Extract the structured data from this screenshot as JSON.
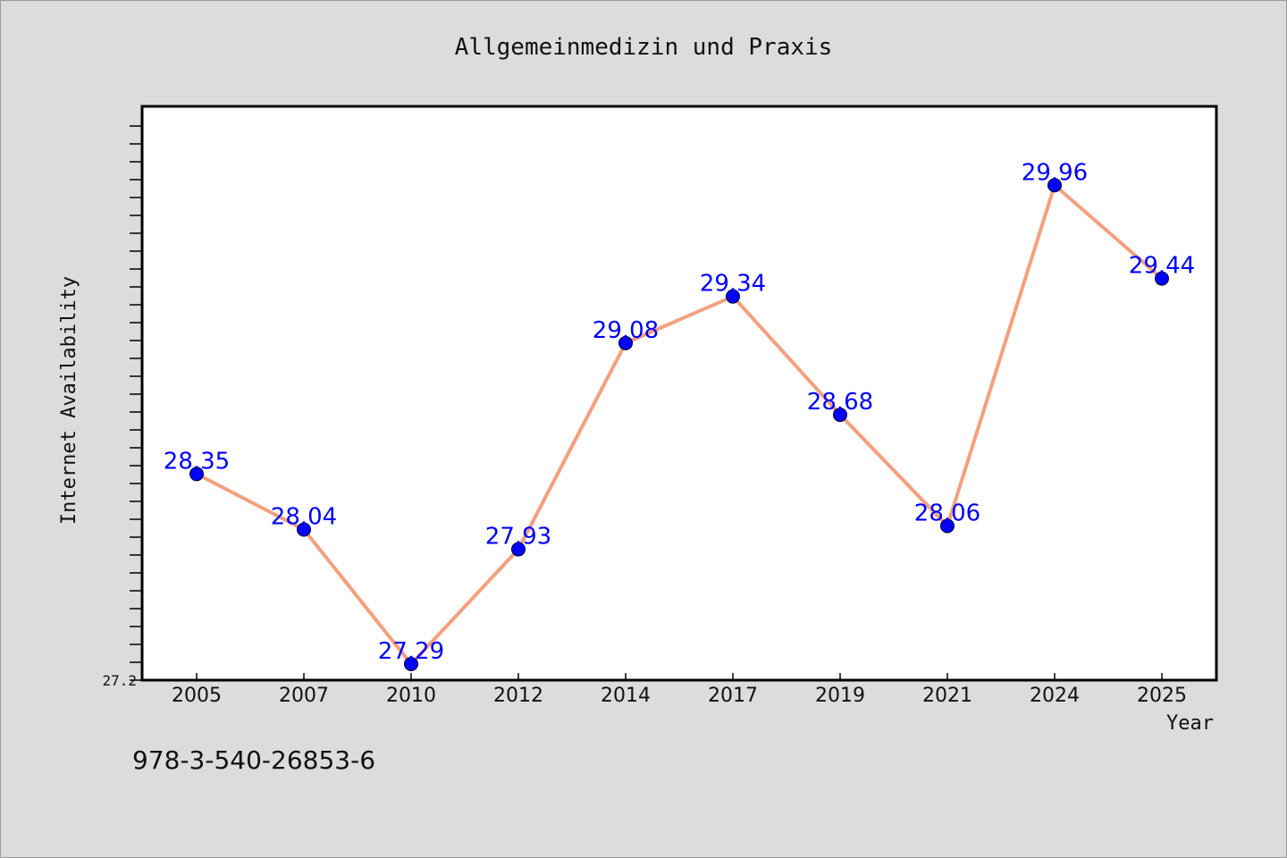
{
  "chart_data": {
    "type": "line",
    "title": "Allgemeinmedizin und Praxis",
    "xlabel": "Year",
    "ylabel": "Internet Availability",
    "categories": [
      "2005",
      "2007",
      "2010",
      "2012",
      "2014",
      "2017",
      "2019",
      "2021",
      "2024",
      "2025"
    ],
    "values": [
      28.35,
      28.04,
      27.29,
      27.93,
      29.08,
      29.34,
      28.68,
      28.06,
      29.96,
      29.44
    ],
    "data_labels": [
      "28.35",
      "28.04",
      "27.29",
      "27.93",
      "29.08",
      "29.34",
      "28.68",
      "28.06",
      "29.96",
      "29.44"
    ],
    "ylim": [
      27.2,
      30.4
    ],
    "ytick_labels": [
      "27.2"
    ],
    "grid": false,
    "legend": "none",
    "colors": {
      "line": "#f4a07e",
      "marker": "#0000ff",
      "data_label": "#0000ff",
      "background": "#dcdcdc",
      "plot_background": "#ffffff"
    }
  },
  "footer": {
    "code": "978-3-540-26853-6"
  }
}
